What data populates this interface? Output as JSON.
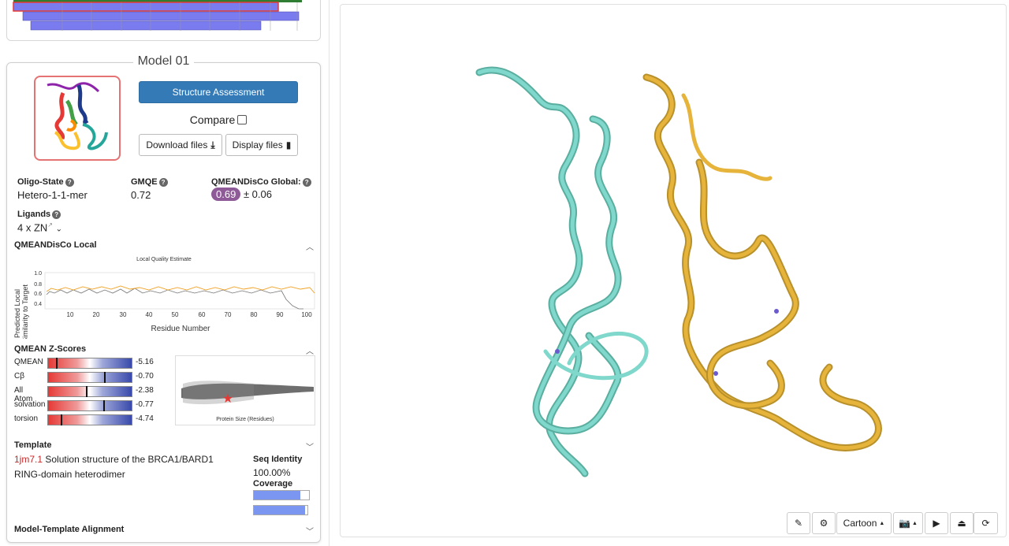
{
  "model": {
    "title": "Model 01",
    "assessment_label": "Structure Assessment",
    "compare_label": "Compare",
    "download_label": "Download files",
    "display_label": "Display files",
    "oligo_label": "Oligo-State",
    "oligo_value": "Hetero-1-1-mer",
    "gmqe_label": "GMQE",
    "gmqe_value": "0.72",
    "qmean_global_label": "QMEANDisCo Global:",
    "qmean_global_value": "0.69",
    "qmean_global_error": "± 0.06",
    "ligands_label": "Ligands",
    "ligands_value": "4 x ZN"
  },
  "local": {
    "title": "QMEANDisCo Local",
    "plot_title": "Local Quality Estimate",
    "ylabel_1": "Predicted Local",
    "ylabel_2": "Similarity to Target",
    "xlabel": "Residue Number",
    "yticks": [
      "1.0",
      "0.8",
      "0.6",
      "0.4"
    ],
    "xticks": [
      "10",
      "20",
      "30",
      "40",
      "50",
      "60",
      "70",
      "80",
      "90",
      "100"
    ]
  },
  "zscores": {
    "title": "QMEAN Z-Scores",
    "rows": [
      {
        "label": "QMEAN",
        "value": "-5.16",
        "level": 0.1
      },
      {
        "label": "Cβ",
        "value": "-0.70",
        "level": 0.7
      },
      {
        "label": "All Atom",
        "value": "-2.38",
        "level": 0.45
      },
      {
        "label": "solvation",
        "value": "-0.77",
        "level": 0.68
      },
      {
        "label": "torsion",
        "value": "-4.74",
        "level": 0.15
      }
    ],
    "scatter_xlabel": "Protein Size (Residues)"
  },
  "template": {
    "title": "Template",
    "id": "1jm7.1",
    "desc_1": "Solution structure of the BRCA1/BARD1",
    "desc_2": "RING-domain heterodimer",
    "seq_identity_label": "Seq Identity",
    "seq_identity_value": "100.00%",
    "coverage_label": "Coverage",
    "coverage": [
      0.93,
      0.95
    ]
  },
  "alignment": {
    "title": "Model-Template Alignment"
  },
  "viewer": {
    "render_mode": "Cartoon"
  }
}
